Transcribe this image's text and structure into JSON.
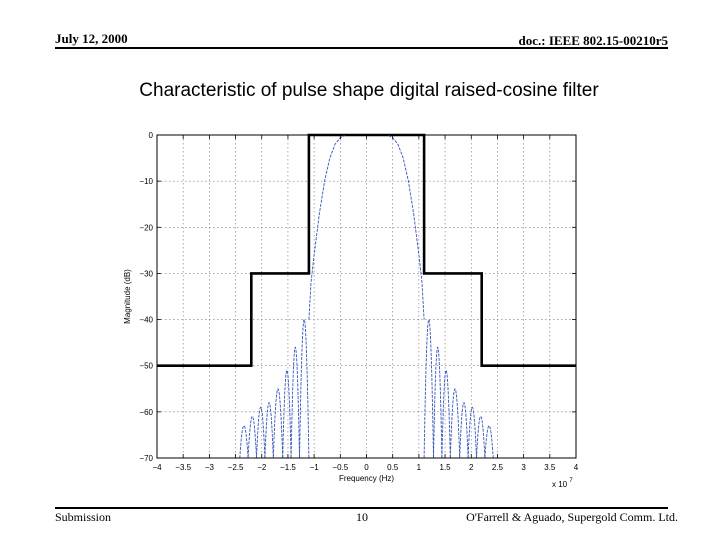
{
  "header": {
    "date": "July 12, 2000",
    "doc": "doc.: IEEE 802.15-00210r5"
  },
  "footer": {
    "left": "Submission",
    "page": "10",
    "right": "O'Farrell & Aguado, Supergold Comm. Ltd."
  },
  "colors": {
    "mask": "#000000",
    "response": "#3355bb",
    "grid": "#777777"
  },
  "chart_data": {
    "type": "line",
    "title": "Characteristic of pulse shape digital raised-cosine filter",
    "xlabel": "Frequency (Hz)",
    "ylabel": "Magnitude (dB)",
    "x_multiplier": "x 10",
    "x_multiplier_exp": "7",
    "xlim": [
      -4,
      4
    ],
    "ylim": [
      -70,
      0
    ],
    "xticks": [
      -4,
      -3.5,
      -3,
      -2.5,
      -2,
      -1.5,
      -1,
      -0.5,
      0,
      0.5,
      1,
      1.5,
      2,
      2.5,
      3,
      3.5,
      4
    ],
    "xtick_labels": [
      "−4",
      "−3.5",
      "−3",
      "−2.5",
      "−2",
      "−1.5",
      "−1",
      "−0.5",
      "0",
      "0.5",
      "1",
      "1.5",
      "2",
      "2.5",
      "3",
      "3.5",
      "4"
    ],
    "yticks": [
      0,
      -10,
      -20,
      -30,
      -40,
      -50,
      -60,
      -70
    ],
    "ytick_labels": [
      "0",
      "−10",
      "−20",
      "−30",
      "−40",
      "−50",
      "−60",
      "−70"
    ],
    "grid": true,
    "series": [
      {
        "name": "spectral mask",
        "style": "thick-step",
        "x": [
          -4,
          -2.2,
          -2.2,
          -1.1,
          -1.1,
          1.1,
          1.1,
          2.2,
          2.2,
          4
        ],
        "y": [
          -50,
          -50,
          -30,
          -30,
          0,
          0,
          -30,
          -30,
          -50,
          -50
        ]
      },
      {
        "name": "raised-cosine filter response",
        "style": "thin",
        "x": [
          -1.1,
          -1.06,
          -1.0,
          -0.9,
          -0.8,
          -0.7,
          -0.6,
          -0.5,
          -0.4,
          -0.3,
          -0.2,
          -0.1,
          0,
          0.1,
          0.2,
          0.3,
          0.4,
          0.5,
          0.6,
          0.7,
          0.8,
          0.9,
          1.0,
          1.06,
          1.1
        ],
        "y": [
          -40,
          -32,
          -26,
          -17,
          -10,
          -5,
          -2,
          -0.6,
          0,
          0,
          0,
          0,
          0,
          0,
          0,
          0,
          0,
          -0.6,
          -2,
          -5,
          -10,
          -17,
          -26,
          -32,
          -40
        ]
      }
    ],
    "sidelobes": [
      {
        "x": [
          -1.1,
          -1.28
        ],
        "peak": -40
      },
      {
        "x": [
          -1.28,
          -1.44
        ],
        "peak": -46
      },
      {
        "x": [
          -1.44,
          -1.6
        ],
        "peak": -51
      },
      {
        "x": [
          -1.6,
          -1.78
        ],
        "peak": -55
      },
      {
        "x": [
          -1.78,
          -1.94
        ],
        "peak": -58
      },
      {
        "x": [
          -1.94,
          -2.1
        ],
        "peak": -59
      },
      {
        "x": [
          -2.1,
          -2.26
        ],
        "peak": -61
      },
      {
        "x": [
          -2.26,
          -2.42
        ],
        "peak": -63
      },
      {
        "x": [
          1.1,
          1.28
        ],
        "peak": -40
      },
      {
        "x": [
          1.28,
          1.44
        ],
        "peak": -46
      },
      {
        "x": [
          1.44,
          1.6
        ],
        "peak": -51
      },
      {
        "x": [
          1.6,
          1.78
        ],
        "peak": -55
      },
      {
        "x": [
          1.78,
          1.94
        ],
        "peak": -58
      },
      {
        "x": [
          1.94,
          2.1
        ],
        "peak": -59
      },
      {
        "x": [
          2.1,
          2.26
        ],
        "peak": -61
      },
      {
        "x": [
          2.26,
          2.42
        ],
        "peak": -63
      }
    ]
  }
}
